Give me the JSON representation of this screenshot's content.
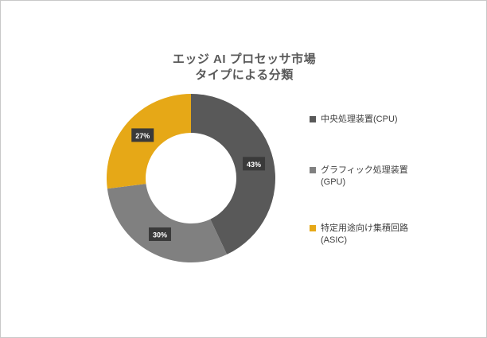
{
  "title": {
    "line1": "エッジ AI プロセッサ市場",
    "line2": "タイプによる分類"
  },
  "chart_data": {
    "type": "pie",
    "subtype": "donut",
    "title": "エッジ AI プロセッサ市場 タイプによる分類",
    "categories": [
      "中央処理装置(CPU)",
      "グラフィック処理装置 (GPU)",
      "特定用途向け集積回路 (ASIC)"
    ],
    "values": [
      43,
      30,
      27
    ],
    "unit": "%",
    "labels": [
      "43%",
      "30%",
      "27%"
    ],
    "colors": [
      "#595959",
      "#808080",
      "#e6a817"
    ],
    "label_box_color": "#3a3a3a",
    "label_text_color": "#ffffff",
    "start_angle_deg": 0,
    "direction": "clockwise",
    "legend_position": "right"
  },
  "legend": {
    "items": [
      {
        "label": "中央処理装置(CPU)",
        "color": "#595959"
      },
      {
        "label": "グラフィック処理装置 (GPU)",
        "color": "#808080"
      },
      {
        "label": "特定用途向け集積回路 (ASIC)",
        "color": "#e6a817"
      }
    ]
  }
}
